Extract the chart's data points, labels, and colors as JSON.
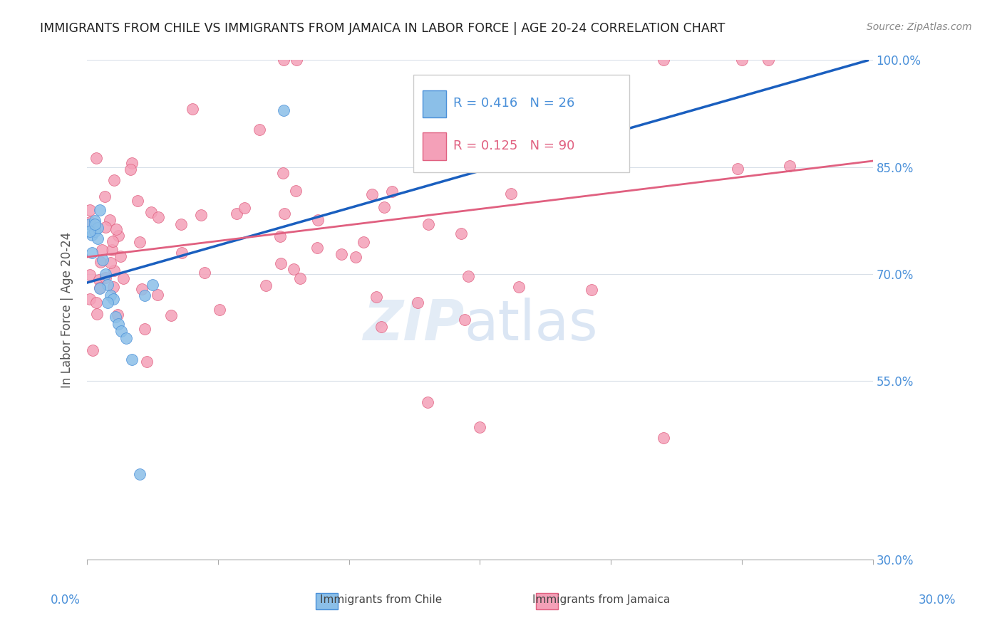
{
  "title": "IMMIGRANTS FROM CHILE VS IMMIGRANTS FROM JAMAICA IN LABOR FORCE | AGE 20-24 CORRELATION CHART",
  "source": "Source: ZipAtlas.com",
  "ylabel": "In Labor Force | Age 20-24",
  "ylabel_ticks": [
    "30.0%",
    "55.0%",
    "70.0%",
    "85.0%",
    "100.0%"
  ],
  "ylabel_tick_vals": [
    0.3,
    0.55,
    0.7,
    0.85,
    1.0
  ],
  "xmin": 0.0,
  "xmax": 0.3,
  "ymin": 0.3,
  "ymax": 1.0,
  "chile_color": "#8bbfe8",
  "chile_edge": "#4a90d9",
  "jamaica_color": "#f4a0b8",
  "jamaica_edge": "#e06080",
  "chile_line_color": "#1a5fbf",
  "jamaica_line_color": "#e06080",
  "chile_R": 0.416,
  "chile_N": 26,
  "jamaica_R": 0.125,
  "jamaica_N": 90
}
